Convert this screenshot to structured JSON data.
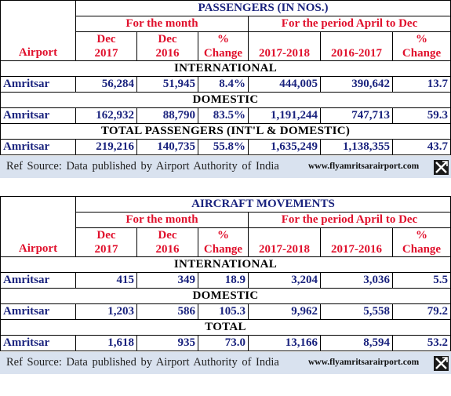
{
  "passengers": {
    "title": "PASSENGERS (IN NOS.)",
    "airport_label": "Airport",
    "period_month": "For the month",
    "period_range": "For the period April to Dec",
    "columns": [
      {
        "l1": "Dec",
        "l2": "2017"
      },
      {
        "l1": "Dec",
        "l2": "2016"
      },
      {
        "l1": "%",
        "l2": "Change"
      },
      {
        "l1": "",
        "l2": "2017-2018"
      },
      {
        "l1": "",
        "l2": "2016-2017"
      },
      {
        "l1": "%",
        "l2": "Change"
      }
    ],
    "sections": [
      {
        "heading": "INTERNATIONAL",
        "airport": "Amritsar",
        "values": [
          "56,284",
          "51,945",
          "8.4%",
          "444,005",
          "390,642",
          "13.7"
        ]
      },
      {
        "heading": "DOMESTIC",
        "airport": "Amritsar",
        "values": [
          "162,932",
          "88,790",
          "83.5%",
          "1,191,244",
          "747,713",
          "59.3"
        ]
      },
      {
        "heading": "TOTAL PASSENGERS (INT'L & DOMESTIC)",
        "airport": "Amritsar",
        "values": [
          "219,216",
          "140,735",
          "55.8%",
          "1,635,249",
          "1,138,355",
          "43.7"
        ]
      }
    ]
  },
  "aircraft": {
    "title": "AIRCRAFT MOVEMENTS",
    "airport_label": "Airport",
    "period_month": "For the month",
    "period_range": "For the period April to Dec",
    "columns": [
      {
        "l1": "Dec",
        "l2": "2017"
      },
      {
        "l1": "Dec",
        "l2": "2016"
      },
      {
        "l1": "%",
        "l2": "Change"
      },
      {
        "l1": "",
        "l2": "2017-2018"
      },
      {
        "l1": "",
        "l2": "2017-2016"
      },
      {
        "l1": "%",
        "l2": "Change"
      }
    ],
    "sections": [
      {
        "heading": "INTERNATIONAL",
        "airport": "Amritsar",
        "values": [
          "415",
          "349",
          "18.9",
          "3,204",
          "3,036",
          "5.5"
        ]
      },
      {
        "heading": "DOMESTIC",
        "airport": "Amritsar",
        "values": [
          "1,203",
          "586",
          "105.3",
          "9,962",
          "5,558",
          "79.2"
        ]
      },
      {
        "heading": "TOTAL",
        "airport": "Amritsar",
        "values": [
          "1,618",
          "935",
          "73.0",
          "13,166",
          "8,594",
          "53.2"
        ]
      }
    ]
  },
  "footer": {
    "source": "Ref Source: Data published  by Airport Authority  of India",
    "site": "www.flyamritsarairport.com",
    "icon": "x-logo-icon"
  }
}
